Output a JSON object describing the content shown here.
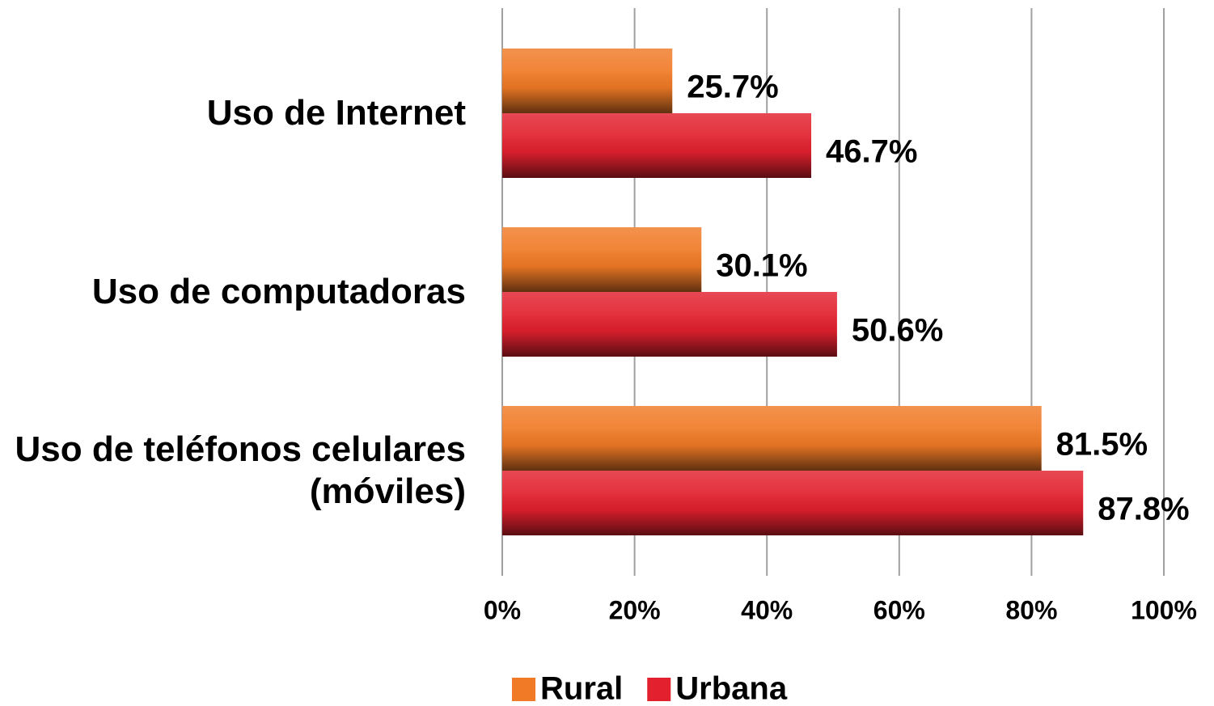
{
  "chart_data": {
    "type": "bar",
    "orientation": "horizontal",
    "categories": [
      "Uso de Internet",
      "Uso de computadoras",
      "Uso de teléfonos celulares (móviles)"
    ],
    "series": [
      {
        "name": "Rural",
        "color": "#f07a26",
        "values": [
          25.7,
          30.1,
          81.5
        ],
        "value_labels": [
          "25.7%",
          "30.1%",
          "81.5%"
        ]
      },
      {
        "name": "Urbana",
        "color": "#e2202e",
        "values": [
          46.7,
          50.6,
          87.8
        ],
        "value_labels": [
          "46.7%",
          "50.6%",
          "87.8%"
        ]
      }
    ],
    "xlim": [
      0,
      100
    ],
    "xticks": [
      {
        "value": 0,
        "label": "0%"
      },
      {
        "value": 20,
        "label": "20%"
      },
      {
        "value": 40,
        "label": "40%"
      },
      {
        "value": 60,
        "label": "60%"
      },
      {
        "value": 80,
        "label": "80%"
      },
      {
        "value": 100,
        "label": "100%"
      }
    ],
    "grid": true,
    "legend": "bottom"
  }
}
